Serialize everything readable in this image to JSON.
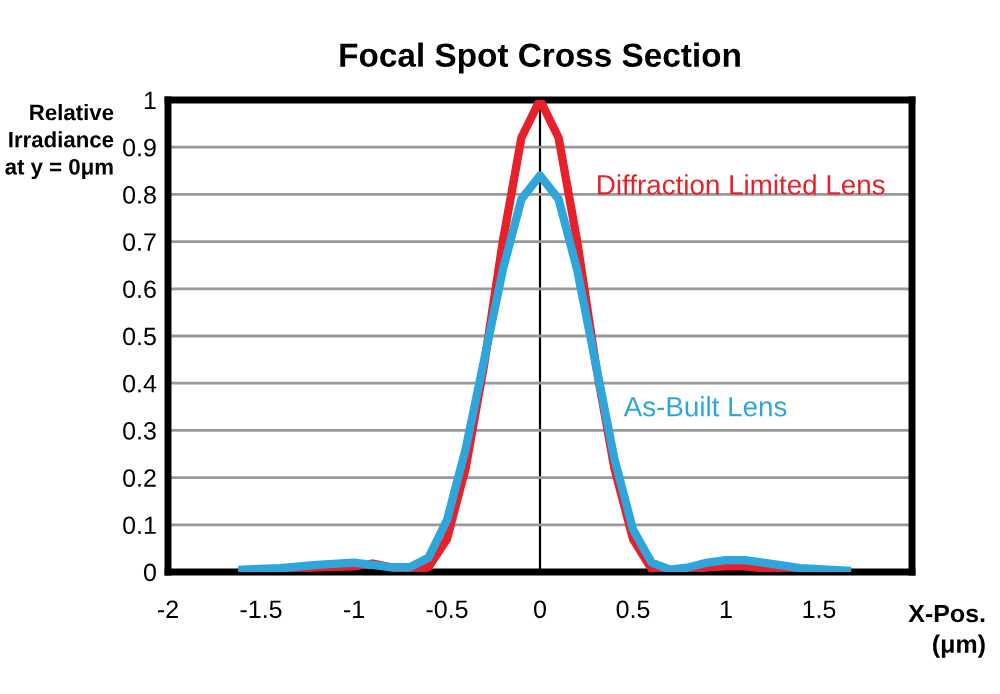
{
  "chart_data": {
    "type": "line",
    "title": "Focal Spot Cross Section",
    "ylabel": "Relative\nIrradiance\nat y = 0μm",
    "xlabel": "X-Pos.\n(μm)",
    "x": [
      -1.6,
      -1.4,
      -1.2,
      -1.0,
      -0.9,
      -0.8,
      -0.7,
      -0.6,
      -0.5,
      -0.4,
      -0.3,
      -0.2,
      -0.1,
      0,
      0.1,
      0.2,
      0.3,
      0.4,
      0.5,
      0.6,
      0.7,
      0.8,
      0.9,
      1.0,
      1.1,
      1.2,
      1.4,
      1.65
    ],
    "series": [
      {
        "name": "Diffraction Limited Lens",
        "color": "#e8202a",
        "values": [
          0,
          0.005,
          0.01,
          0.012,
          0.018,
          0.01,
          0.002,
          0.01,
          0.07,
          0.22,
          0.44,
          0.7,
          0.92,
          1,
          0.92,
          0.7,
          0.44,
          0.22,
          0.07,
          0.006,
          0,
          0.004,
          0.01,
          0.012,
          0.012,
          0.008,
          0.003,
          0
        ]
      },
      {
        "name": "As-Built Lens",
        "color": "#2ea6dc",
        "values": [
          0.005,
          0.008,
          0.015,
          0.02,
          0.015,
          0.01,
          0.01,
          0.03,
          0.11,
          0.26,
          0.45,
          0.64,
          0.79,
          0.84,
          0.79,
          0.64,
          0.44,
          0.24,
          0.09,
          0.02,
          0.005,
          0.01,
          0.02,
          0.025,
          0.025,
          0.02,
          0.008,
          0.003
        ]
      }
    ],
    "xlim": [
      -2,
      2
    ],
    "xticks": [
      -2,
      -1.5,
      -1,
      -0.5,
      0,
      0.5,
      1,
      1.5
    ],
    "ylim": [
      0,
      1
    ],
    "yticks": [
      0,
      0.1,
      0.2,
      0.3,
      0.4,
      0.5,
      0.6,
      0.7,
      0.8,
      0.9,
      1
    ],
    "grid": "y",
    "legend": false,
    "marker": "none",
    "line_style": "solid"
  }
}
